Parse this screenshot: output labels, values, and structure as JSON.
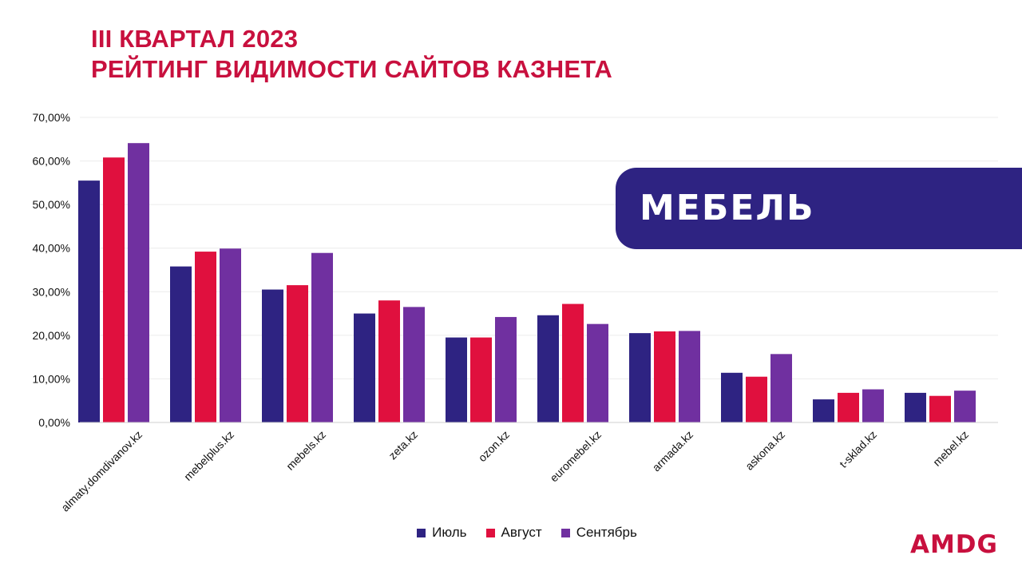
{
  "header": {
    "line1": "III КВАРТАЛ 2023",
    "line2": "РЕЙТИНГ ВИДИМОСТИ САЙТОВ КАЗНЕТА"
  },
  "banner": {
    "text": "МЕБЕЛЬ",
    "color": "#2e2382"
  },
  "logo": {
    "text": "AMDG",
    "color": "#c8103e"
  },
  "colors": {
    "title": "#c8103e"
  },
  "chart_data": {
    "type": "bar",
    "title": "",
    "xlabel": "",
    "ylabel": "",
    "ylim": [
      0,
      70
    ],
    "yticks": [
      "0,00%",
      "10,00%",
      "20,00%",
      "30,00%",
      "40,00%",
      "50,00%",
      "60,00%",
      "70,00%"
    ],
    "grid": true,
    "legend_position": "bottom",
    "categories": [
      "almaty.domdivanov.kz",
      "mebelplus.kz",
      "mebels.kz",
      "zeta.kz",
      "ozon.kz",
      "euromebel.kz",
      "armada.kz",
      "askona.kz",
      "t-sklad.kz",
      "mebel.kz"
    ],
    "series": [
      {
        "name": "Июль",
        "color": "#2e2382",
        "values": [
          55.5,
          35.8,
          30.5,
          25.0,
          19.5,
          24.6,
          20.5,
          11.4,
          5.3,
          6.8
        ]
      },
      {
        "name": "Август",
        "color": "#e0103e",
        "values": [
          60.8,
          39.2,
          31.5,
          28.0,
          19.5,
          27.2,
          20.9,
          10.5,
          6.8,
          6.1
        ]
      },
      {
        "name": "Сентябрь",
        "color": "#7030a0",
        "values": [
          64.1,
          39.9,
          38.9,
          26.5,
          24.2,
          22.6,
          21.0,
          15.7,
          7.6,
          7.3
        ]
      }
    ]
  }
}
